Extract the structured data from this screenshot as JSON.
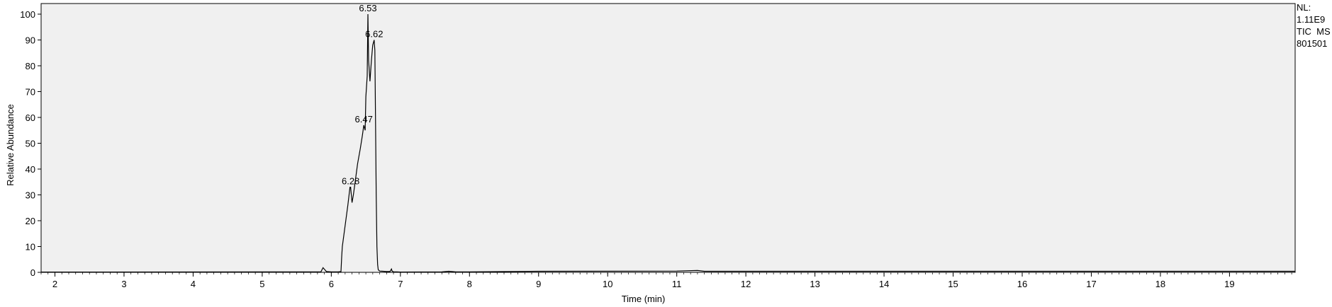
{
  "chart_data": {
    "type": "line",
    "xlabel": "Time (min)",
    "ylabel": "Relative Abundance",
    "xlim": [
      1.8,
      19.95
    ],
    "ylim": [
      0,
      100
    ],
    "x_ticks": [
      2,
      3,
      4,
      5,
      6,
      7,
      8,
      9,
      10,
      11,
      12,
      13,
      14,
      15,
      16,
      17,
      18,
      19
    ],
    "y_ticks": [
      0,
      10,
      20,
      30,
      40,
      50,
      60,
      70,
      80,
      90,
      100
    ],
    "grid": false,
    "series": [
      {
        "x": [
          1.8,
          5.85,
          5.88,
          5.9,
          5.93,
          6.0,
          6.1,
          6.14,
          6.15,
          6.16,
          6.2,
          6.24,
          6.27,
          6.28,
          6.3,
          6.32,
          6.35,
          6.38,
          6.42,
          6.45,
          6.47,
          6.49,
          6.5,
          6.52,
          6.53,
          6.54,
          6.56,
          6.58,
          6.6,
          6.62,
          6.63,
          6.64,
          6.65,
          6.66,
          6.67,
          6.68,
          6.7,
          6.75,
          6.8,
          6.85,
          6.87,
          6.88,
          6.9,
          6.95,
          7.0,
          7.6,
          7.7,
          7.8,
          8.0,
          9.0,
          11.0,
          11.3,
          11.4,
          19.95
        ],
        "y": [
          0.1,
          0.2,
          1.8,
          1.2,
          0.3,
          0.2,
          0.2,
          0.3,
          6.0,
          10.0,
          18.0,
          26.0,
          33.0,
          33.0,
          27.0,
          30.0,
          36.0,
          42.0,
          48.0,
          53.0,
          57.0,
          55.0,
          68.0,
          76.0,
          100.0,
          82.0,
          74.0,
          82.0,
          88.0,
          90.0,
          86.0,
          60.0,
          30.0,
          10.0,
          3.0,
          1.0,
          0.5,
          0.4,
          0.3,
          0.3,
          1.3,
          0.5,
          0.2,
          0.2,
          0.1,
          0.2,
          0.4,
          0.2,
          0.2,
          0.4,
          0.5,
          0.7,
          0.4,
          0.4
        ]
      }
    ],
    "peak_labels": [
      {
        "x": 6.53,
        "y": 100,
        "label": "6.53"
      },
      {
        "x": 6.62,
        "y": 90,
        "label": "6.62"
      },
      {
        "x": 6.47,
        "y": 57,
        "label": "6.47"
      },
      {
        "x": 6.28,
        "y": 33,
        "label": "6.28"
      }
    ]
  },
  "normalization": {
    "line1": "NL:",
    "line2": "1.11E9",
    "line3": "TIC  MS",
    "line4": "801501"
  }
}
